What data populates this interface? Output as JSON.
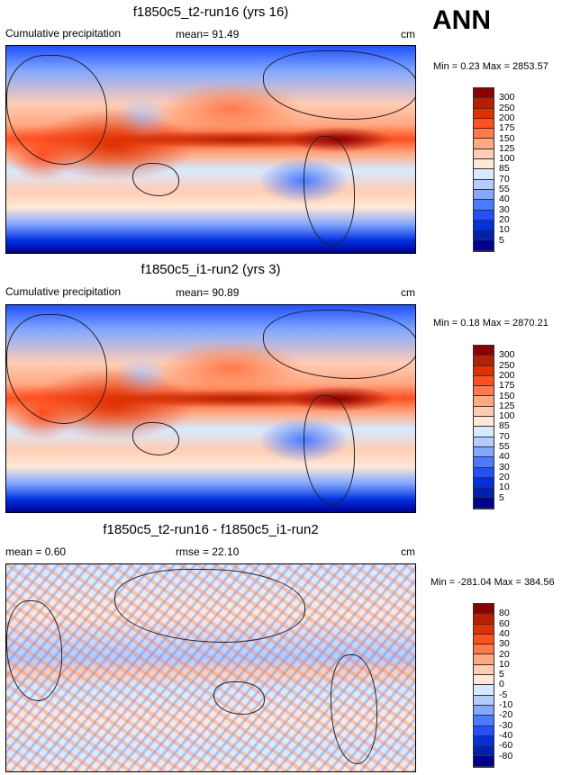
{
  "season": "ANN",
  "panels": [
    {
      "title": "f1850c5_t2-run16 (yrs 16)",
      "left_label": "Cumulative precipitation",
      "center_label": "mean=  91.49",
      "units": "cm",
      "minmax": "Min =   0.23 Max = 2853.57"
    },
    {
      "title": "f1850c5_i1-run2 (yrs 3)",
      "left_label": "Cumulative precipitation",
      "center_label": "mean=  90.89",
      "units": "cm",
      "minmax": "Min =   0.18 Max = 2870.21"
    },
    {
      "title": "f1850c5_t2-run16 - f1850c5_i1-run2",
      "left_label": "mean =   0.60",
      "center_label": "rmse =  22.10",
      "units": "cm",
      "minmax": "Min = -281.04 Max = 384.56"
    }
  ],
  "colorbar_colors": [
    "#8b0000",
    "#b52000",
    "#e03000",
    "#ff5020",
    "#ff7a48",
    "#ffa882",
    "#ffcdb4",
    "#ffe8d6",
    "#d6eaff",
    "#b4ccff",
    "#82a8ff",
    "#4a7aff",
    "#2050ff",
    "#0030e0",
    "#0020b0",
    "#000090"
  ],
  "colorbars": [
    {
      "levels": [
        "300",
        "250",
        "200",
        "175",
        "150",
        "125",
        "100",
        "85",
        "70",
        "55",
        "40",
        "30",
        "20",
        "10",
        "5"
      ]
    },
    {
      "levels": [
        "300",
        "250",
        "200",
        "175",
        "150",
        "125",
        "100",
        "85",
        "70",
        "55",
        "40",
        "30",
        "20",
        "10",
        "5"
      ]
    },
    {
      "levels": [
        "80",
        "60",
        "40",
        "30",
        "20",
        "10",
        "5",
        "0",
        "-5",
        "-10",
        "-20",
        "-30",
        "-40",
        "-60",
        "-80"
      ]
    }
  ]
}
